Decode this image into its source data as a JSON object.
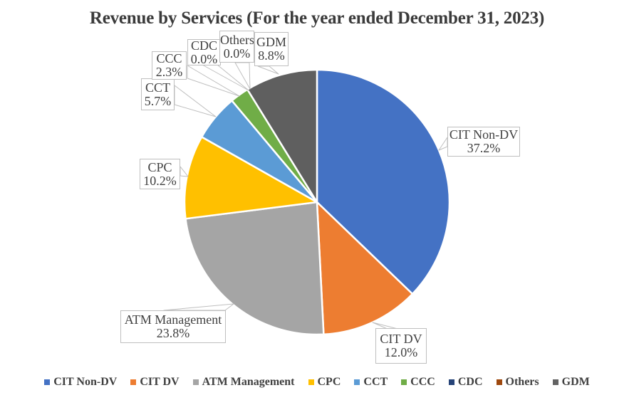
{
  "chart_data": {
    "type": "pie",
    "title": "Revenue by Services (For the year ended December 31, 2023)",
    "direction": "clockwise",
    "start_angle_deg": 0,
    "legend_position": "bottom",
    "data_labels": "category name and percentage in white callout boxes",
    "points": [
      {
        "label": "CIT Non-DV",
        "value": 37.2,
        "pct_label": "37.2%",
        "color": "#4472C4"
      },
      {
        "label": "CIT DV",
        "value": 12.0,
        "pct_label": "12.0%",
        "color": "#ED7D31"
      },
      {
        "label": "ATM Management",
        "value": 23.8,
        "pct_label": "23.8%",
        "color": "#A5A5A5"
      },
      {
        "label": "CPC",
        "value": 10.2,
        "pct_label": "10.2%",
        "color": "#FFC000"
      },
      {
        "label": "CCT",
        "value": 5.7,
        "pct_label": "5.7%",
        "color": "#5B9BD5"
      },
      {
        "label": "CCC",
        "value": 2.3,
        "pct_label": "2.3%",
        "color": "#70AD47"
      },
      {
        "label": "CDC",
        "value": 0.0,
        "pct_label": "0.0%",
        "color": "#264478"
      },
      {
        "label": "Others",
        "value": 0.0,
        "pct_label": "0.0%",
        "color": "#9E480E"
      },
      {
        "label": "GDM",
        "value": 8.8,
        "pct_label": "8.8%",
        "color": "#5F5F5F"
      }
    ],
    "legend_labels": [
      "CIT Non-DV",
      "CIT DV",
      "ATM Management",
      "CPC",
      "CCT",
      "CCC",
      "CDC",
      "Others",
      "GDM"
    ]
  },
  "colors": {
    "background": "#FFFFFF",
    "title_text": "#3B3B3B",
    "label_text": "#404040",
    "callout_border": "#BFBFBF",
    "slice_gap": "#FFFFFF"
  }
}
